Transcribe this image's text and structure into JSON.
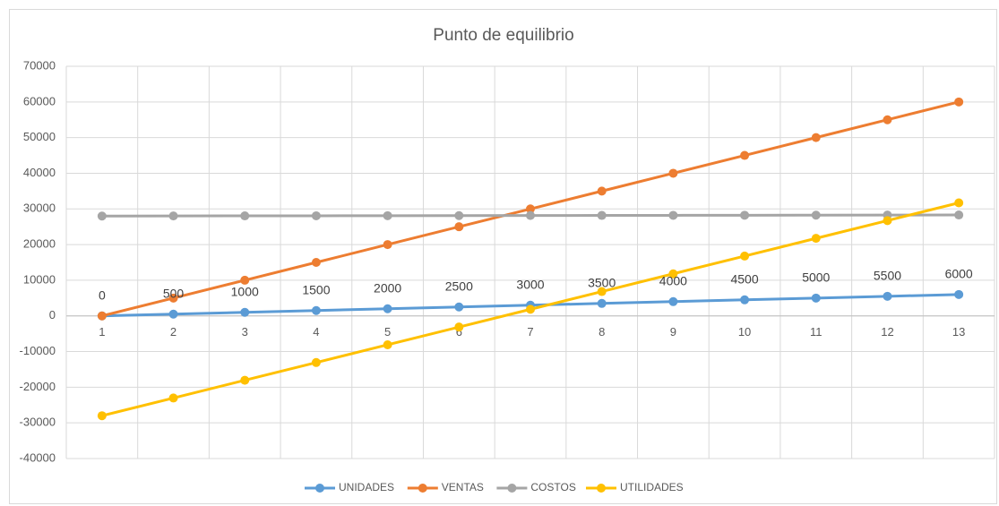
{
  "chart_data": {
    "type": "line",
    "title": "Punto de equilibrio",
    "categories": [
      "1",
      "2",
      "3",
      "4",
      "5",
      "6",
      "7",
      "8",
      "9",
      "10",
      "11",
      "12",
      "13"
    ],
    "series": [
      {
        "name": "UNIDADES",
        "color": "#5b9bd5",
        "values": [
          0,
          500,
          1000,
          1500,
          2000,
          2500,
          3000,
          3500,
          4000,
          4500,
          5000,
          5500,
          6000
        ],
        "data_labels": true
      },
      {
        "name": "VENTAS",
        "color": "#ed7d31",
        "values": [
          0,
          5000,
          10000,
          15000,
          20000,
          25000,
          30000,
          35000,
          40000,
          45000,
          50000,
          55000,
          60000
        ]
      },
      {
        "name": "COSTOS",
        "color": "#a5a5a5",
        "values": [
          28000,
          28025,
          28050,
          28075,
          28100,
          28125,
          28150,
          28175,
          28200,
          28225,
          28250,
          28275,
          28300
        ]
      },
      {
        "name": "UTILIDADES",
        "color": "#ffc000",
        "values": [
          -28000,
          -23025,
          -18050,
          -13075,
          -8100,
          -3125,
          1850,
          6825,
          11800,
          16775,
          21750,
          26725,
          31700
        ]
      }
    ],
    "ylim": [
      -40000,
      70000
    ],
    "yticks": [
      -40000,
      -30000,
      -20000,
      -10000,
      0,
      10000,
      20000,
      30000,
      40000,
      50000,
      60000,
      70000
    ],
    "grid": true,
    "legend": "bottom"
  }
}
